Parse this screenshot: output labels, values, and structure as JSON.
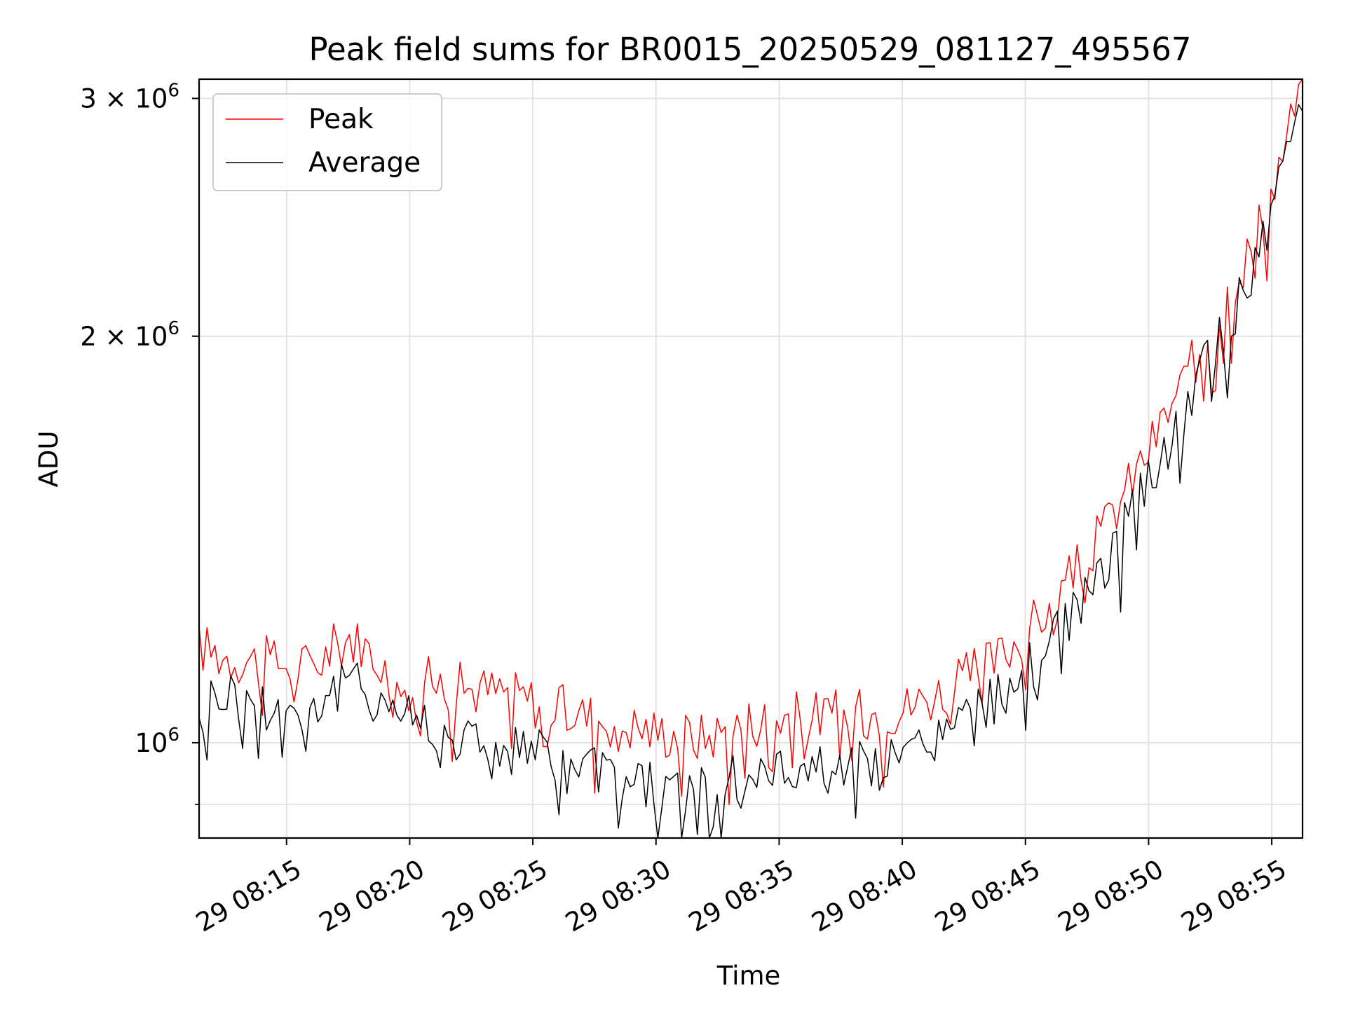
{
  "chart_data": {
    "type": "line",
    "title": "Peak field sums for BR0015_20250529_081127_495567",
    "xlabel": "Time",
    "ylabel": "ADU",
    "x_unit": "time",
    "x_start": "29 08:11:27",
    "x_end": "29 08:56:15",
    "xlim": [
      "29 08:11:27",
      "29 08:56:15"
    ],
    "x_ticks": [
      "29 08:15",
      "29 08:20",
      "29 08:25",
      "29 08:30",
      "29 08:35",
      "29 08:40",
      "29 08:45",
      "29 08:50",
      "29 08:55"
    ],
    "x_tick_values": [
      "29 08:15",
      "29 08:20",
      "29 08:25",
      "29 08:30",
      "29 08:35",
      "29 08:40",
      "29 08:45",
      "29 08:50",
      "29 08:55"
    ],
    "y_scale": "log",
    "ylim": [
      850000,
      3100000
    ],
    "y_ticks": [
      {
        "value": 1000000,
        "label": "10",
        "sup": "6"
      },
      {
        "value": 2000000,
        "label": "2 × 10",
        "sup": "6"
      },
      {
        "value": 3000000,
        "label": "3 × 10",
        "sup": "6"
      }
    ],
    "y_minor_ticks": [
      900000
    ],
    "grid": true,
    "legend_position": "upper-left",
    "series": [
      {
        "name": "Peak",
        "color": "#ff0000",
        "keypoints": [
          [
            "29 08:11:27",
            1180000
          ],
          [
            "29 08:12:30",
            1160000
          ],
          [
            "29 08:14:00",
            1150000
          ],
          [
            "29 08:16:00",
            1140000
          ],
          [
            "29 08:17:30",
            1200000
          ],
          [
            "29 08:20:00",
            1120000
          ],
          [
            "29 08:22:00",
            1100000
          ],
          [
            "29 08:24:00",
            1090000
          ],
          [
            "29 08:26:00",
            1060000
          ],
          [
            "29 08:28:00",
            1040000
          ],
          [
            "29 08:30:00",
            1020000
          ],
          [
            "29 08:32:00",
            1010000
          ],
          [
            "29 08:34:00",
            1040000
          ],
          [
            "29 08:36:00",
            1050000
          ],
          [
            "29 08:38:00",
            1050000
          ],
          [
            "29 08:40:00",
            1060000
          ],
          [
            "29 08:42:00",
            1100000
          ],
          [
            "29 08:44:00",
            1160000
          ],
          [
            "29 08:46:00",
            1260000
          ],
          [
            "29 08:48:00",
            1420000
          ],
          [
            "29 08:50:00",
            1650000
          ],
          [
            "29 08:52:00",
            1940000
          ],
          [
            "29 08:54:00",
            2300000
          ],
          [
            "29 08:55:00",
            2560000
          ],
          [
            "29 08:56:15",
            3100000
          ]
        ]
      },
      {
        "name": "Average",
        "color": "#000000",
        "keypoints": [
          [
            "29 08:11:27",
            1080000
          ],
          [
            "29 08:12:30",
            1090000
          ],
          [
            "29 08:14:00",
            1070000
          ],
          [
            "29 08:16:00",
            1060000
          ],
          [
            "29 08:17:30",
            1110000
          ],
          [
            "29 08:20:00",
            1050000
          ],
          [
            "29 08:22:00",
            1010000
          ],
          [
            "29 08:24:00",
            1000000
          ],
          [
            "29 08:26:00",
            970000
          ],
          [
            "29 08:28:00",
            950000
          ],
          [
            "29 08:30:00",
            930000
          ],
          [
            "29 08:32:00",
            920000
          ],
          [
            "29 08:34:00",
            950000
          ],
          [
            "29 08:36:00",
            960000
          ],
          [
            "29 08:38:00",
            960000
          ],
          [
            "29 08:40:00",
            970000
          ],
          [
            "29 08:42:00",
            1030000
          ],
          [
            "29 08:44:00",
            1090000
          ],
          [
            "29 08:46:00",
            1180000
          ],
          [
            "29 08:48:00",
            1330000
          ],
          [
            "29 08:50:00",
            1560000
          ],
          [
            "29 08:52:00",
            1850000
          ],
          [
            "29 08:54:00",
            2200000
          ],
          [
            "29 08:55:00",
            2450000
          ],
          [
            "29 08:56:15",
            3020000
          ]
        ]
      }
    ]
  }
}
